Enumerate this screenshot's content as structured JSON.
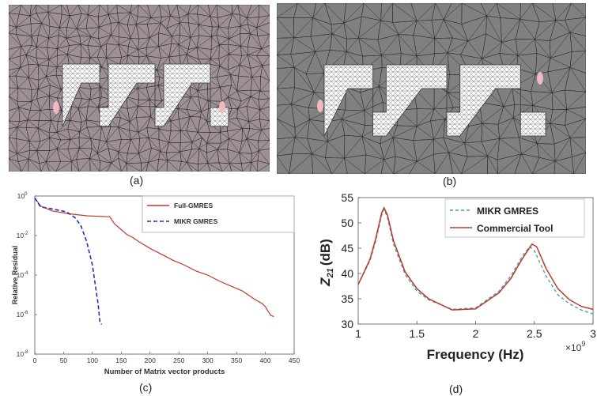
{
  "captions": {
    "a": "(a)",
    "b": "(b)",
    "c": "(c)",
    "d": "(d)"
  },
  "mesh_a": {
    "background": "#9d8f96",
    "trace_fill": "#ffffff",
    "port_color": "#f2b8c2"
  },
  "mesh_b": {
    "background": "#808080",
    "trace_fill": "#ffffff",
    "port_color": "#f2b8c2"
  },
  "chart_c": {
    "type": "line",
    "ylabel": "Relative Residual",
    "xlabel": "Number of Matrix vector products",
    "xlim": [
      0,
      450
    ],
    "ylim_log10": [
      -8,
      0
    ],
    "x_ticks": [
      "0",
      "50",
      "100",
      "150",
      "200",
      "250",
      "300",
      "350",
      "400",
      "450"
    ],
    "y_ticks": [
      {
        "base": "10",
        "exp": "0"
      },
      {
        "base": "10",
        "exp": "-2"
      },
      {
        "base": "10",
        "exp": "-4"
      },
      {
        "base": "10",
        "exp": "-6"
      },
      {
        "base": "10",
        "exp": "-8"
      }
    ],
    "legend_placement": "top-right",
    "series": [
      {
        "name": "Full-GMRES",
        "color": "#c0392b",
        "style": "solid",
        "x": [
          0,
          10,
          30,
          60,
          90,
          130,
          138,
          150,
          160,
          170,
          180,
          200,
          220,
          240,
          260,
          280,
          300,
          320,
          340,
          360,
          380,
          395,
          400,
          405,
          410,
          415
        ],
        "y": [
          -0.1,
          -0.5,
          -0.75,
          -0.9,
          -1.0,
          -1.05,
          -1.4,
          -1.7,
          -1.95,
          -2.1,
          -2.3,
          -2.65,
          -2.95,
          -3.25,
          -3.5,
          -3.8,
          -4.0,
          -4.3,
          -4.55,
          -4.8,
          -5.2,
          -5.45,
          -5.6,
          -5.85,
          -6.05,
          -6.1
        ]
      },
      {
        "name": "MIKR GMRES",
        "color": "#2b2bb5",
        "style": "dashed",
        "x": [
          0,
          10,
          30,
          55,
          70,
          80,
          90,
          100,
          105,
          110,
          113,
          116
        ],
        "y": [
          -0.1,
          -0.55,
          -0.65,
          -0.8,
          -1.1,
          -1.5,
          -2.3,
          -3.5,
          -4.5,
          -5.5,
          -6.4,
          -6.5
        ]
      }
    ]
  },
  "chart_d": {
    "type": "line",
    "ylabel_base": "Z",
    "ylabel_sub": "21",
    "ylabel_unit": "(dB)",
    "xlabel": "Frequency (Hz)",
    "x_multiplier_base": "×10",
    "x_multiplier_exp": "9",
    "xlim": [
      1,
      3
    ],
    "ylim": [
      30,
      55
    ],
    "x_ticks": [
      "1",
      "1.5",
      "2",
      "2.5",
      "3"
    ],
    "y_ticks": [
      "30",
      "35",
      "40",
      "45",
      "50",
      "55"
    ],
    "legend_placement": "top-right",
    "series": [
      {
        "name": "MIKR GMRES",
        "color": "#3aa3a3",
        "style": "dashed",
        "x": [
          1.0,
          1.1,
          1.15,
          1.2,
          1.22,
          1.25,
          1.3,
          1.4,
          1.5,
          1.6,
          1.8,
          2.0,
          2.2,
          2.3,
          2.4,
          2.46,
          2.5,
          2.6,
          2.7,
          2.8,
          2.9,
          3.0
        ],
        "y": [
          37.8,
          42.5,
          46.5,
          51.5,
          52.7,
          51.0,
          45.8,
          39.8,
          36.5,
          34.8,
          32.9,
          33.2,
          36.5,
          39.5,
          43.5,
          45.3,
          44.5,
          39.5,
          35.8,
          34.0,
          32.8,
          32.0
        ]
      },
      {
        "name": "Commercial Tool",
        "color": "#c0392b",
        "style": "solid",
        "x": [
          1.0,
          1.1,
          1.15,
          1.2,
          1.22,
          1.25,
          1.3,
          1.4,
          1.5,
          1.6,
          1.8,
          2.0,
          2.2,
          2.3,
          2.4,
          2.48,
          2.52,
          2.6,
          2.7,
          2.8,
          2.9,
          3.0
        ],
        "y": [
          37.8,
          42.8,
          47.0,
          52.0,
          53.0,
          51.5,
          46.5,
          40.3,
          37.0,
          35.0,
          32.8,
          33.0,
          36.2,
          39.0,
          43.0,
          45.8,
          45.3,
          41.0,
          37.0,
          34.8,
          33.5,
          32.9
        ]
      }
    ]
  }
}
